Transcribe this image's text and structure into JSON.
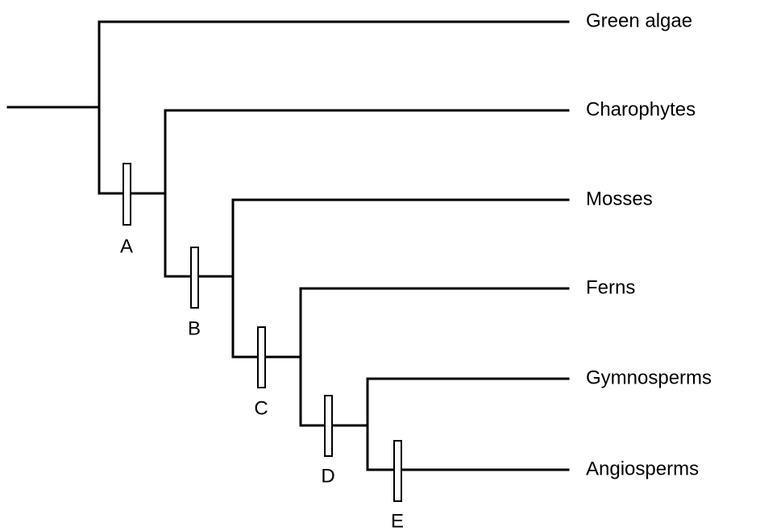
{
  "taxa": [
    "Green algae",
    "Charophytes",
    "Mosses",
    "Ferns",
    "Gymnosperms",
    "Angiosperms"
  ],
  "nodes": [
    "A",
    "B",
    "C",
    "D",
    "E"
  ]
}
